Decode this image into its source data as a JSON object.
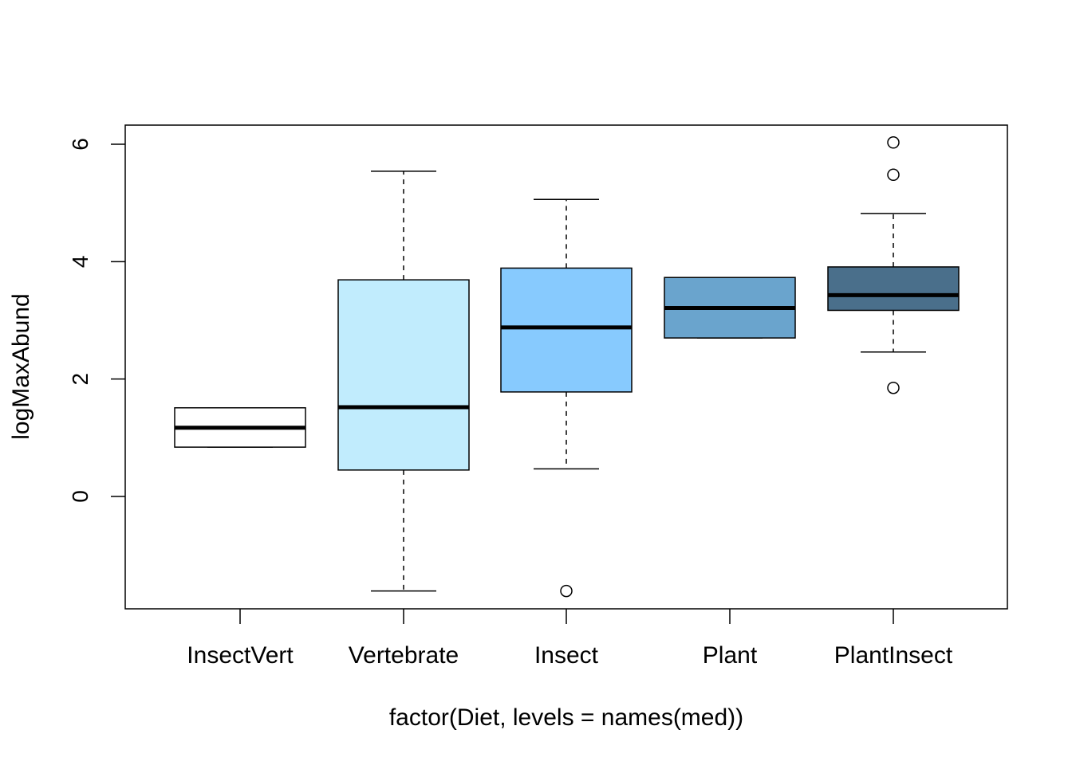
{
  "chart_data": {
    "type": "boxplot",
    "title": "",
    "xlabel": "factor(Diet, levels = names(med))",
    "ylabel": "logMaxAbund",
    "ylim": [
      -1.9,
      6.35
    ],
    "yticks": [
      0,
      2,
      4,
      6
    ],
    "ytick_labels": [
      "0",
      "2",
      "4",
      "6"
    ],
    "grid": false,
    "categories": [
      "InsectVert",
      "Vertebrate",
      "Insect",
      "Plant",
      "PlantInsect"
    ],
    "boxes": [
      {
        "category": "InsectVert",
        "whisker_low": 0.84,
        "q1": 0.84,
        "median": 1.17,
        "q3": 1.51,
        "whisker_high": 1.51,
        "outliers": [],
        "color": "#ffffff"
      },
      {
        "category": "Vertebrate",
        "whisker_low": -1.61,
        "q1": 0.45,
        "median": 1.52,
        "q3": 3.69,
        "whisker_high": 5.54,
        "outliers": [],
        "color": "#c1ecfd"
      },
      {
        "category": "Insect",
        "whisker_low": 0.47,
        "q1": 1.78,
        "median": 2.88,
        "q3": 3.89,
        "whisker_high": 5.06,
        "outliers": [
          -1.61
        ],
        "color": "#87cafe"
      },
      {
        "category": "Plant",
        "whisker_low": 2.7,
        "q1": 2.7,
        "median": 3.21,
        "q3": 3.73,
        "whisker_high": 3.73,
        "outliers": [],
        "color": "#6aa4cd"
      },
      {
        "category": "PlantInsect",
        "whisker_low": 2.46,
        "q1": 3.17,
        "median": 3.43,
        "q3": 3.91,
        "whisker_high": 4.82,
        "outliers": [
          1.85,
          5.48,
          6.03
        ],
        "color": "#4a6f8b"
      }
    ]
  }
}
